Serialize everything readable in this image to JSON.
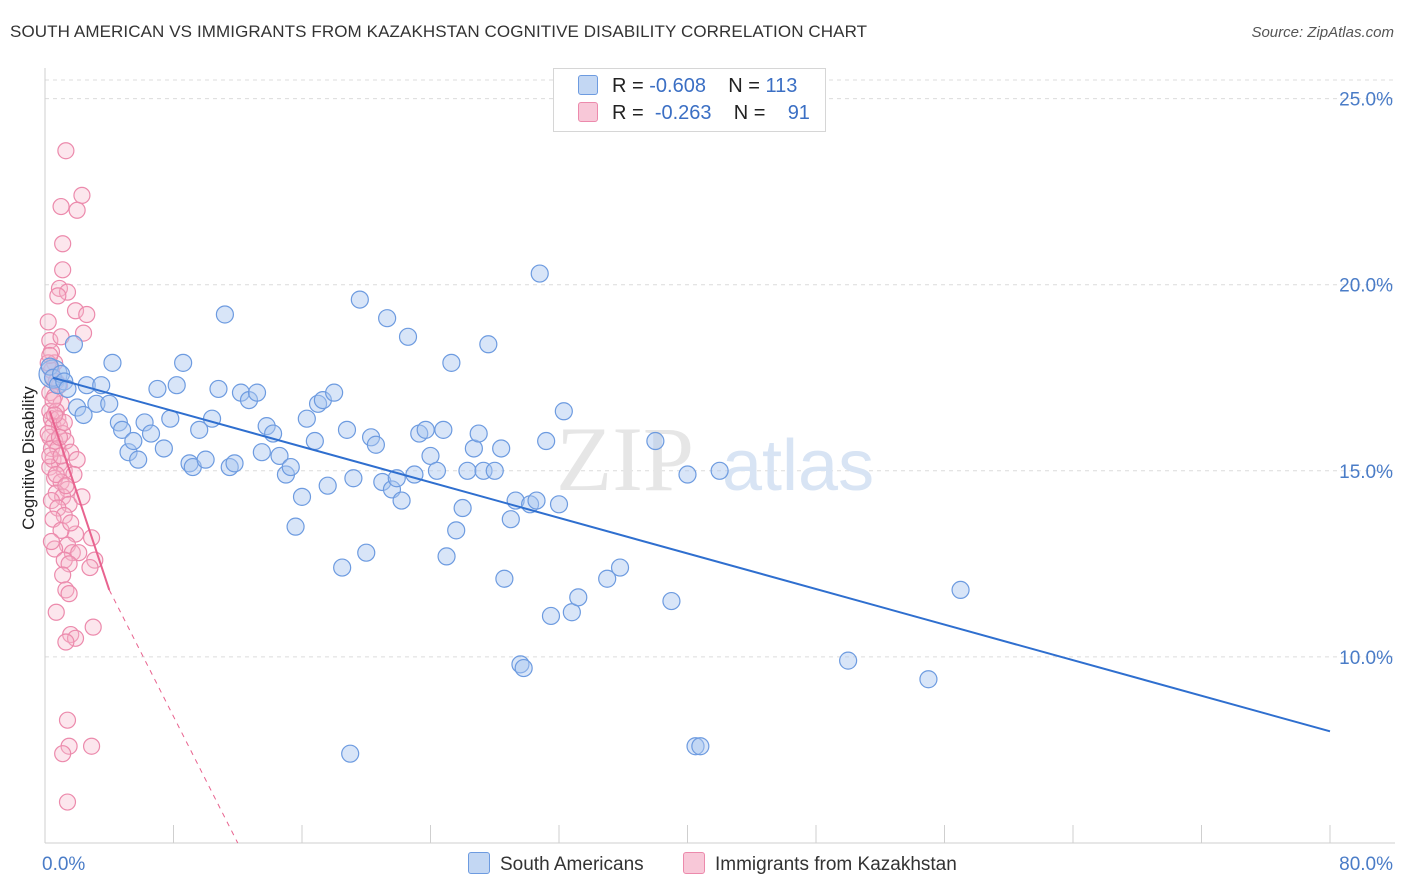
{
  "title": "SOUTH AMERICAN VS IMMIGRANTS FROM KAZAKHSTAN COGNITIVE DISABILITY CORRELATION CHART",
  "source": "Source: ZipAtlas.com",
  "watermark": {
    "zip": "ZIP",
    "atlas": "atlas"
  },
  "legend": {
    "rows": [
      {
        "r_label": "R =",
        "r_value": "-0.608",
        "n_label": "N =",
        "n_value": "113"
      },
      {
        "r_label": "R =",
        "r_value": "-0.263",
        "n_label": "N =",
        "n_value": "91"
      }
    ]
  },
  "colors": {
    "blue_fill": "#a9c6ef",
    "blue_stroke": "#6d9be0",
    "blue_line": "#2f6fcf",
    "pink_fill": "#f6b6cb",
    "pink_stroke": "#ec8aac",
    "pink_line": "#e8638f",
    "grid": "#dcdcdc",
    "tick_text": "#4a7cc7"
  },
  "chart_data": {
    "type": "scatter",
    "title": "SOUTH AMERICAN VS IMMIGRANTS FROM KAZAKHSTAN COGNITIVE DISABILITY CORRELATION CHART",
    "xlabel": "",
    "ylabel": "Cognitive Disability",
    "xlim": [
      0,
      80
    ],
    "ylim": [
      5,
      25.5
    ],
    "x_tick_labels": [
      "0.0%",
      "80.0%"
    ],
    "y_ticks": [
      10,
      15,
      20,
      25
    ],
    "y_tick_labels": [
      "10.0%",
      "15.0%",
      "20.0%",
      "25.0%"
    ],
    "legend_position": "bottom-center",
    "series": [
      {
        "name": "South Americans",
        "r": -0.608,
        "n": 113,
        "trend": {
          "x0": 0.5,
          "y0": 17.5,
          "x1": 80,
          "y1": 8.0,
          "style": "solid"
        },
        "points": [
          [
            0.3,
            17.8
          ],
          [
            0.5,
            17.5
          ],
          [
            0.8,
            17.3
          ],
          [
            1.0,
            17.6
          ],
          [
            1.2,
            17.4
          ],
          [
            1.4,
            17.2
          ],
          [
            1.8,
            18.4
          ],
          [
            2.0,
            16.7
          ],
          [
            2.4,
            16.5
          ],
          [
            2.6,
            17.3
          ],
          [
            3.2,
            16.8
          ],
          [
            3.5,
            17.3
          ],
          [
            4.0,
            16.8
          ],
          [
            4.2,
            17.9
          ],
          [
            4.6,
            16.3
          ],
          [
            4.8,
            16.1
          ],
          [
            5.2,
            15.5
          ],
          [
            5.5,
            15.8
          ],
          [
            5.8,
            15.3
          ],
          [
            6.2,
            16.3
          ],
          [
            6.6,
            16.0
          ],
          [
            7.0,
            17.2
          ],
          [
            7.4,
            15.6
          ],
          [
            7.8,
            16.4
          ],
          [
            8.2,
            17.3
          ],
          [
            8.6,
            17.9
          ],
          [
            9.0,
            15.2
          ],
          [
            9.2,
            15.1
          ],
          [
            9.6,
            16.1
          ],
          [
            10.0,
            15.3
          ],
          [
            10.4,
            16.4
          ],
          [
            10.8,
            17.2
          ],
          [
            11.2,
            19.2
          ],
          [
            11.5,
            15.1
          ],
          [
            11.8,
            15.2
          ],
          [
            12.2,
            17.1
          ],
          [
            12.7,
            16.9
          ],
          [
            13.2,
            17.1
          ],
          [
            13.5,
            15.5
          ],
          [
            13.8,
            16.2
          ],
          [
            14.2,
            16.0
          ],
          [
            14.6,
            15.4
          ],
          [
            15.0,
            14.9
          ],
          [
            15.3,
            15.1
          ],
          [
            15.6,
            13.5
          ],
          [
            16.0,
            14.3
          ],
          [
            16.3,
            16.4
          ],
          [
            16.8,
            15.8
          ],
          [
            17.0,
            16.8
          ],
          [
            17.3,
            16.9
          ],
          [
            17.6,
            14.6
          ],
          [
            18.0,
            17.1
          ],
          [
            18.5,
            12.4
          ],
          [
            18.8,
            16.1
          ],
          [
            19.2,
            14.8
          ],
          [
            19.6,
            19.6
          ],
          [
            20.0,
            12.8
          ],
          [
            20.3,
            15.9
          ],
          [
            20.6,
            15.7
          ],
          [
            21.0,
            14.7
          ],
          [
            21.3,
            19.1
          ],
          [
            21.6,
            14.5
          ],
          [
            21.9,
            14.8
          ],
          [
            22.2,
            14.2
          ],
          [
            22.6,
            18.6
          ],
          [
            23.0,
            14.9
          ],
          [
            23.3,
            16.0
          ],
          [
            23.7,
            16.1
          ],
          [
            24.0,
            15.4
          ],
          [
            24.4,
            15.0
          ],
          [
            24.8,
            16.1
          ],
          [
            25.0,
            12.7
          ],
          [
            25.3,
            17.9
          ],
          [
            25.6,
            13.4
          ],
          [
            26.0,
            14.0
          ],
          [
            26.3,
            15.0
          ],
          [
            26.7,
            15.6
          ],
          [
            27.0,
            16.0
          ],
          [
            27.3,
            15.0
          ],
          [
            27.6,
            18.4
          ],
          [
            28.0,
            15.0
          ],
          [
            28.4,
            15.6
          ],
          [
            28.6,
            12.1
          ],
          [
            29.0,
            13.7
          ],
          [
            29.3,
            14.2
          ],
          [
            29.6,
            9.8
          ],
          [
            29.8,
            9.7
          ],
          [
            30.2,
            14.1
          ],
          [
            30.6,
            14.2
          ],
          [
            30.8,
            20.3
          ],
          [
            31.2,
            15.8
          ],
          [
            31.5,
            11.1
          ],
          [
            32.0,
            14.1
          ],
          [
            32.3,
            16.6
          ],
          [
            32.8,
            11.2
          ],
          [
            33.2,
            11.6
          ],
          [
            35.0,
            12.1
          ],
          [
            35.8,
            12.4
          ],
          [
            38.0,
            15.8
          ],
          [
            39.0,
            11.5
          ],
          [
            40.0,
            14.9
          ],
          [
            40.5,
            7.6
          ],
          [
            40.8,
            7.6
          ],
          [
            42.0,
            15.0
          ],
          [
            50.0,
            9.9
          ],
          [
            55.0,
            9.4
          ],
          [
            57.0,
            11.8
          ],
          [
            19.0,
            7.4
          ]
        ]
      },
      {
        "name": "Immigrants from Kazakhstan",
        "r": -0.263,
        "n": 91,
        "trend": {
          "x0": 0.3,
          "y0": 16.6,
          "x1": 4.0,
          "y1": 11.8,
          "dash_x1": 12.0,
          "dash_y1": 0.5,
          "style": "solid-then-dashed"
        },
        "points": [
          [
            1.3,
            23.6
          ],
          [
            2.3,
            22.4
          ],
          [
            1.0,
            22.1
          ],
          [
            2.0,
            22.0
          ],
          [
            1.1,
            21.1
          ],
          [
            1.1,
            20.4
          ],
          [
            0.9,
            19.9
          ],
          [
            1.4,
            19.8
          ],
          [
            0.8,
            19.7
          ],
          [
            1.9,
            19.3
          ],
          [
            2.6,
            19.2
          ],
          [
            0.2,
            19.0
          ],
          [
            2.4,
            18.7
          ],
          [
            0.3,
            18.5
          ],
          [
            1.0,
            18.6
          ],
          [
            0.4,
            18.2
          ],
          [
            0.6,
            17.9
          ],
          [
            0.4,
            17.7
          ],
          [
            0.5,
            17.5
          ],
          [
            0.7,
            17.4
          ],
          [
            0.9,
            17.3
          ],
          [
            0.3,
            17.1
          ],
          [
            0.6,
            17.0
          ],
          [
            1.0,
            16.8
          ],
          [
            0.3,
            16.6
          ],
          [
            0.7,
            16.6
          ],
          [
            0.4,
            16.4
          ],
          [
            0.8,
            16.4
          ],
          [
            0.5,
            16.2
          ],
          [
            0.9,
            16.2
          ],
          [
            1.1,
            16.0
          ],
          [
            0.3,
            15.9
          ],
          [
            0.6,
            15.8
          ],
          [
            1.3,
            15.8
          ],
          [
            0.4,
            15.6
          ],
          [
            0.8,
            15.6
          ],
          [
            1.6,
            15.5
          ],
          [
            2.0,
            15.3
          ],
          [
            0.5,
            15.3
          ],
          [
            0.9,
            15.2
          ],
          [
            0.3,
            15.1
          ],
          [
            1.2,
            15.0
          ],
          [
            1.8,
            14.9
          ],
          [
            0.6,
            14.8
          ],
          [
            1.0,
            14.7
          ],
          [
            1.4,
            14.5
          ],
          [
            0.7,
            14.4
          ],
          [
            1.1,
            14.3
          ],
          [
            0.4,
            14.2
          ],
          [
            1.5,
            14.1
          ],
          [
            0.8,
            14.0
          ],
          [
            1.2,
            13.8
          ],
          [
            0.5,
            13.7
          ],
          [
            1.9,
            13.3
          ],
          [
            2.9,
            13.2
          ],
          [
            1.0,
            13.4
          ],
          [
            1.4,
            13.0
          ],
          [
            0.6,
            12.9
          ],
          [
            1.7,
            12.8
          ],
          [
            2.1,
            12.8
          ],
          [
            1.2,
            12.6
          ],
          [
            3.1,
            12.6
          ],
          [
            1.5,
            12.5
          ],
          [
            2.8,
            12.4
          ],
          [
            1.1,
            12.2
          ],
          [
            1.3,
            11.8
          ],
          [
            1.5,
            11.7
          ],
          [
            0.7,
            11.2
          ],
          [
            3.0,
            10.8
          ],
          [
            1.6,
            10.6
          ],
          [
            1.9,
            10.5
          ],
          [
            1.3,
            10.4
          ],
          [
            1.4,
            8.3
          ],
          [
            1.5,
            7.6
          ],
          [
            2.9,
            7.6
          ],
          [
            1.1,
            7.4
          ],
          [
            1.4,
            6.1
          ],
          [
            0.2,
            16.0
          ],
          [
            0.2,
            17.9
          ],
          [
            0.3,
            15.4
          ],
          [
            0.5,
            16.9
          ],
          [
            0.9,
            15.9
          ],
          [
            1.2,
            16.3
          ],
          [
            0.4,
            13.1
          ],
          [
            0.7,
            14.9
          ],
          [
            1.3,
            14.6
          ],
          [
            0.6,
            16.5
          ],
          [
            1.0,
            15.4
          ],
          [
            2.3,
            14.3
          ],
          [
            0.3,
            18.1
          ],
          [
            1.6,
            13.6
          ]
        ]
      }
    ]
  },
  "bottom_legend": [
    "South Americans",
    "Immigrants from Kazakhstan"
  ]
}
